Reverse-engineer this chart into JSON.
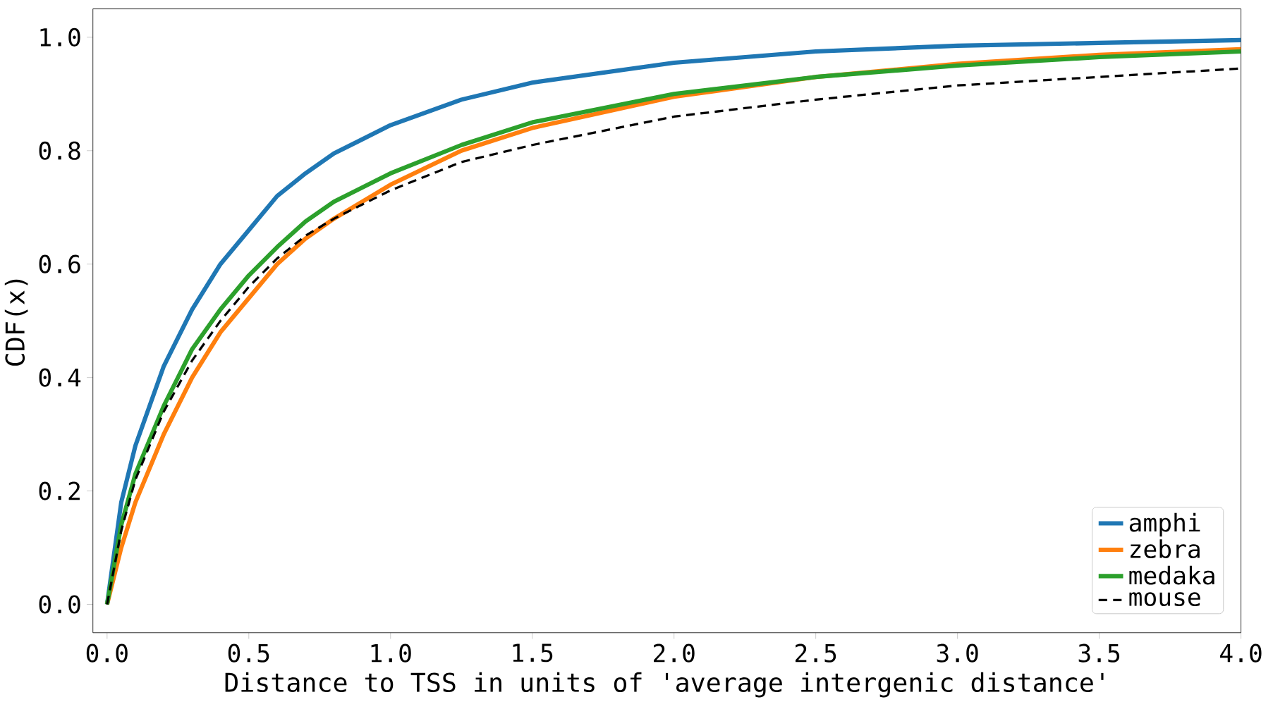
{
  "chart_data": {
    "type": "line",
    "xlabel": "Distance to TSS in units of 'average intergenic distance'",
    "ylabel": "CDF(x)",
    "x": [
      0,
      0.05,
      0.1,
      0.2,
      0.3,
      0.4,
      0.5,
      0.6,
      0.7,
      0.8,
      1.0,
      1.25,
      1.5,
      2.0,
      2.5,
      3.0,
      3.5,
      4.0
    ],
    "series": [
      {
        "name": "amphi",
        "color": "#1f77b4",
        "line_style": "solid",
        "values": [
          0,
          0.18,
          0.28,
          0.42,
          0.52,
          0.6,
          0.66,
          0.72,
          0.76,
          0.795,
          0.845,
          0.89,
          0.92,
          0.955,
          0.975,
          0.985,
          0.99,
          0.995
        ]
      },
      {
        "name": "zebra",
        "color": "#ff7f0e",
        "line_style": "solid",
        "values": [
          0,
          0.1,
          0.18,
          0.3,
          0.4,
          0.48,
          0.54,
          0.6,
          0.645,
          0.68,
          0.74,
          0.8,
          0.84,
          0.895,
          0.93,
          0.953,
          0.969,
          0.979
        ]
      },
      {
        "name": "medaka",
        "color": "#2ca02c",
        "line_style": "solid",
        "values": [
          0,
          0.14,
          0.23,
          0.35,
          0.45,
          0.52,
          0.58,
          0.63,
          0.675,
          0.71,
          0.76,
          0.81,
          0.85,
          0.9,
          0.93,
          0.95,
          0.965,
          0.975
        ]
      },
      {
        "name": "mouse",
        "color": "#000000",
        "line_style": "dashed",
        "values": [
          0,
          0.13,
          0.22,
          0.34,
          0.43,
          0.5,
          0.56,
          0.61,
          0.65,
          0.68,
          0.73,
          0.78,
          0.81,
          0.86,
          0.89,
          0.915,
          0.93,
          0.945
        ]
      }
    ],
    "xlim": [
      -0.05,
      4.0
    ],
    "ylim": [
      -0.05,
      1.05
    ],
    "xticks": [
      {
        "value": 0,
        "label": "0.0"
      },
      0.5,
      {
        "value": 1,
        "label": "1.0"
      },
      1.5,
      {
        "value": 2,
        "label": "2.0"
      },
      2.5,
      {
        "value": 3,
        "label": "3.0"
      },
      3.5,
      {
        "value": 4,
        "label": "4.0"
      }
    ],
    "yticks": [
      {
        "value": 0,
        "label": "0.0"
      },
      0.2,
      0.4,
      0.6,
      0.8,
      {
        "value": 1,
        "label": "1.0"
      }
    ],
    "grid": false,
    "legend": "bottom right",
    "marker": "none"
  }
}
